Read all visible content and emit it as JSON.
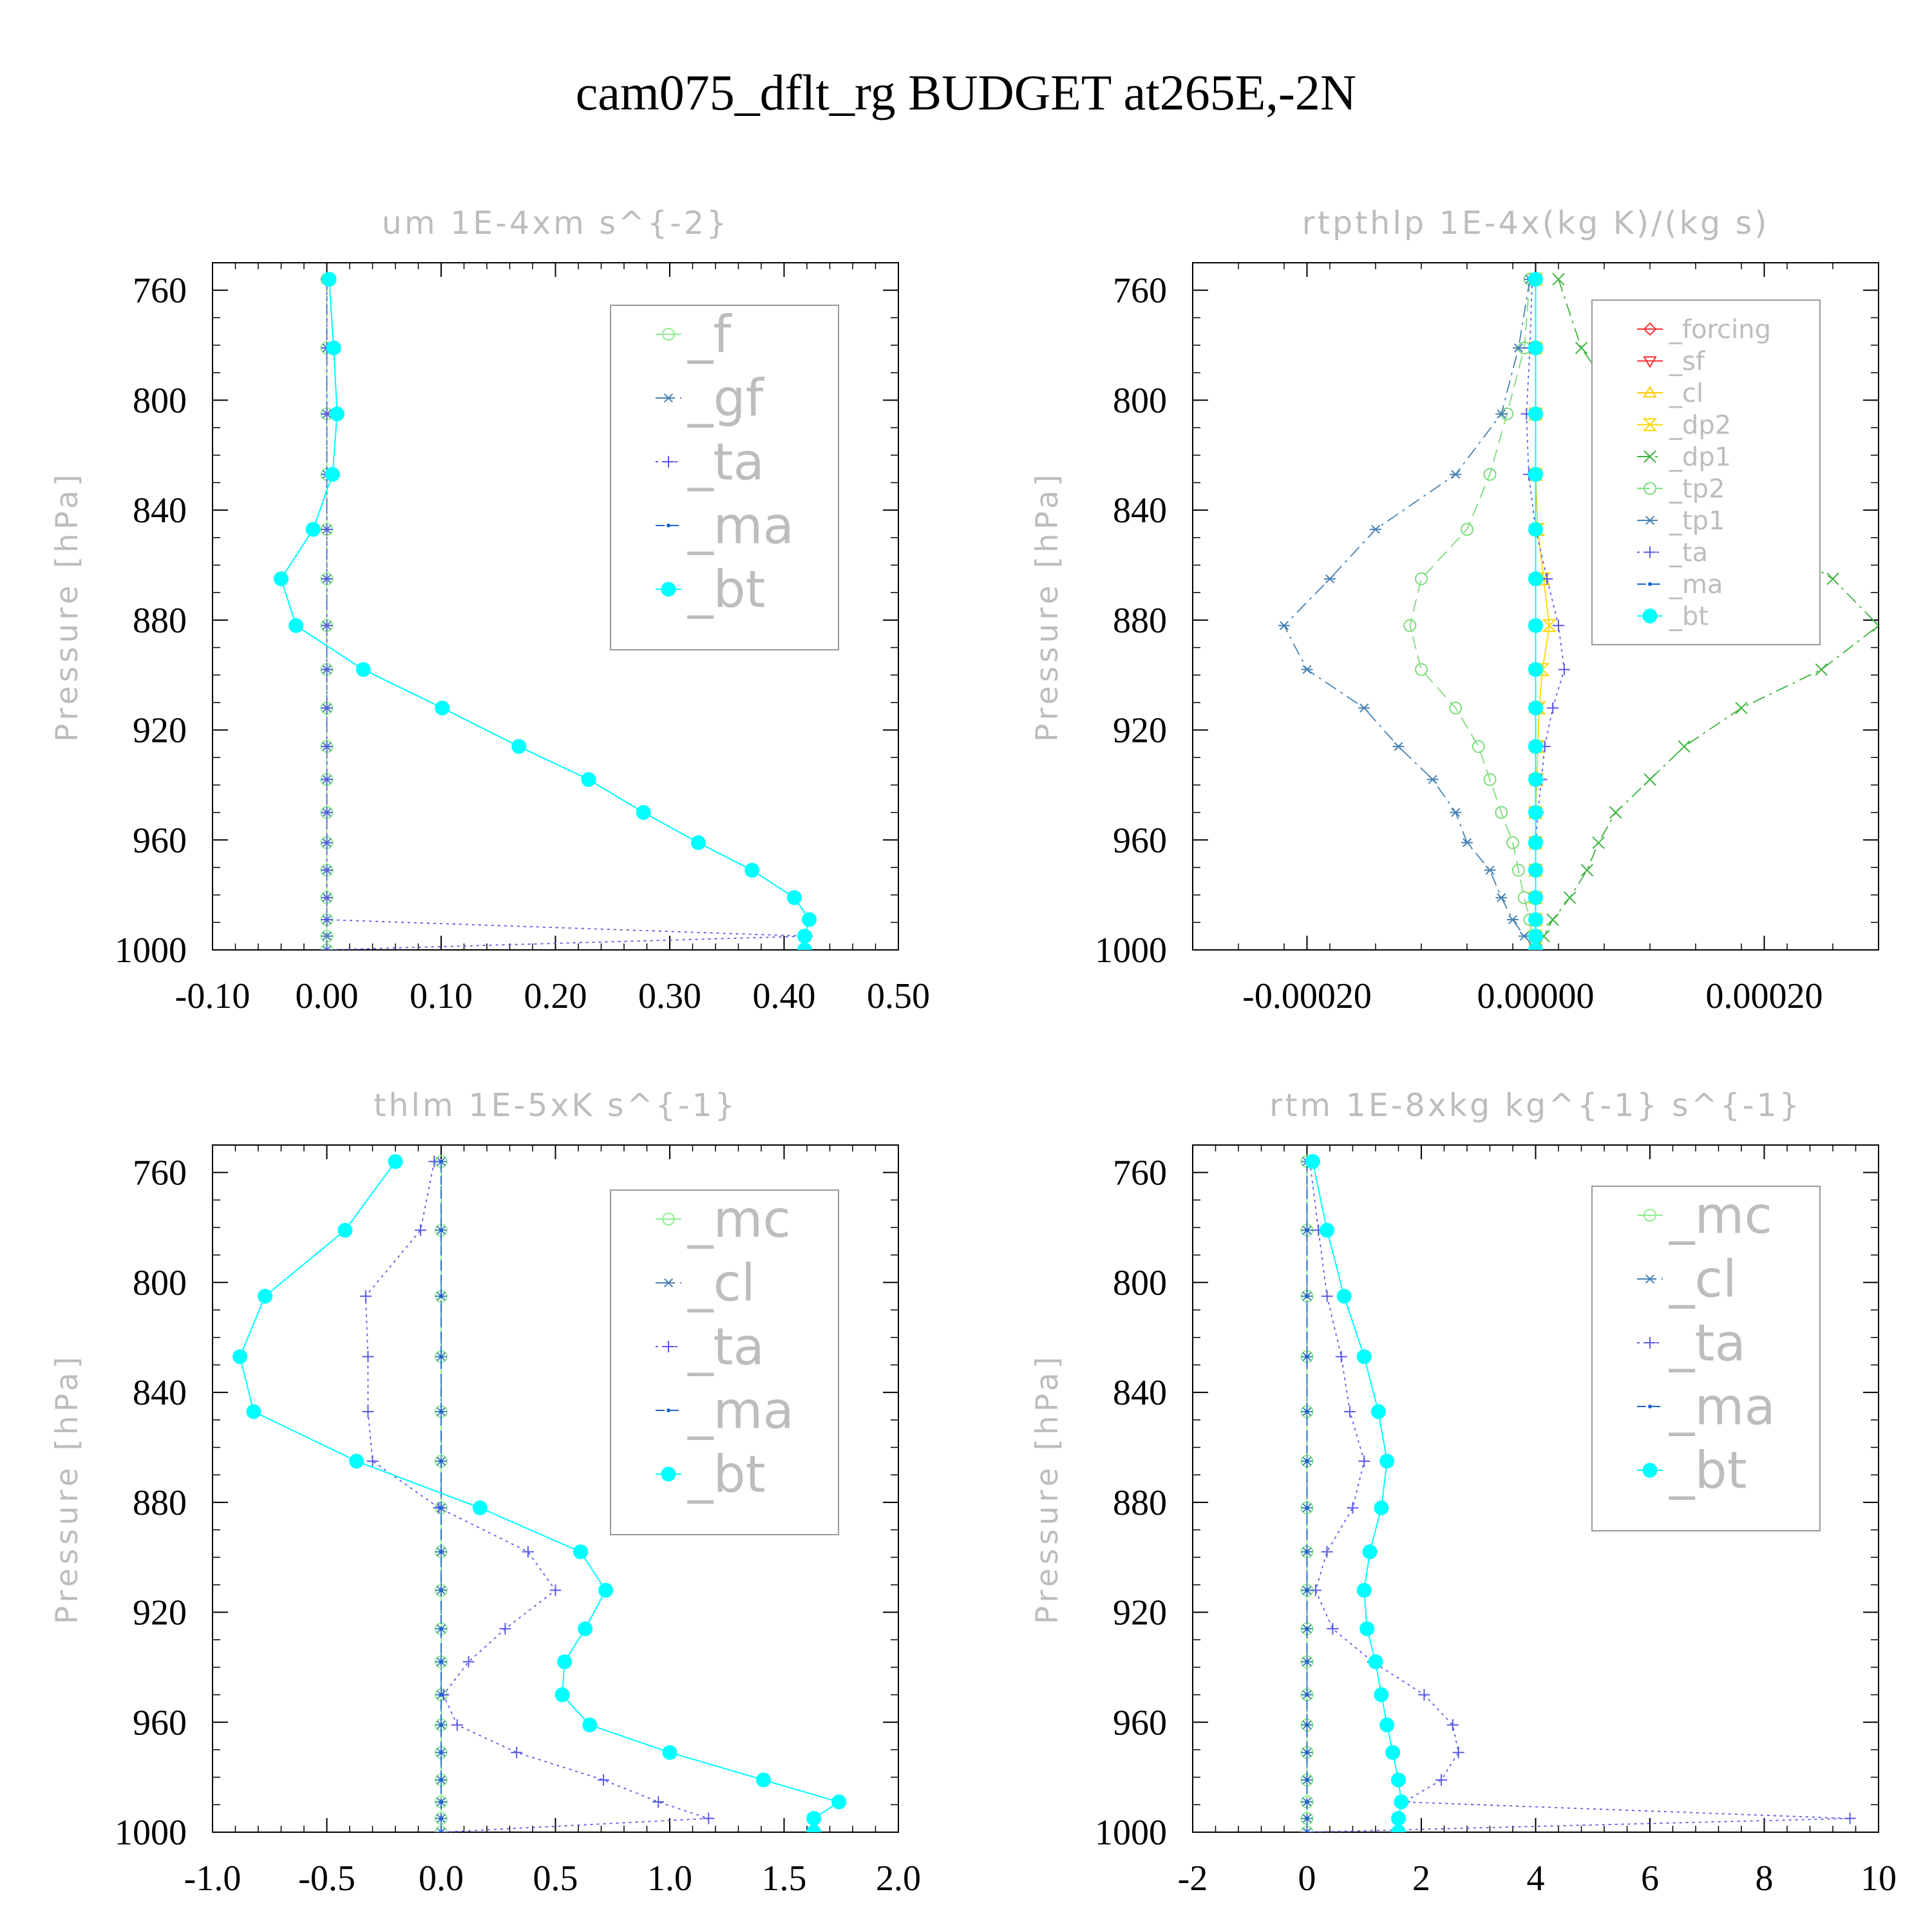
{
  "figure_title": "cam075_dflt_rg  BUDGET at265E,-2N",
  "chart_data": [
    {
      "type": "line",
      "title": "um  1E-4xm s^{-2}",
      "ylabel": "Pressure [hPa]",
      "xlim": [
        -0.1,
        0.5
      ],
      "ylim": [
        1000,
        750
      ],
      "x_ticks": [
        -0.1,
        0.0,
        0.1,
        0.2,
        0.3,
        0.4,
        0.5
      ],
      "x_tick_labels": [
        "-0.10",
        "0.00",
        "0.10",
        "0.20",
        "0.30",
        "0.40",
        "0.50"
      ],
      "y_ticks": [
        760,
        800,
        840,
        880,
        920,
        960,
        1000
      ],
      "y_tick_labels": [
        "760",
        "800",
        "840",
        "880",
        "920",
        "960",
        "1000"
      ],
      "legend_font": 79,
      "pressure": [
        756,
        781,
        805,
        827,
        847,
        865,
        882,
        898,
        912,
        926,
        938,
        950,
        961,
        971,
        981,
        989,
        995,
        1000
      ],
      "series": [
        {
          "name": "_f",
          "color": "#90ee90",
          "dash": "",
          "marker": "circle",
          "values": [
            0,
            0,
            0,
            0,
            0,
            0,
            0,
            0,
            0,
            0,
            0,
            0,
            0,
            0,
            0,
            0,
            0,
            0
          ]
        },
        {
          "name": "_gf",
          "color": "#4682b4",
          "dash": "18,8,4,8",
          "marker": "asterisk",
          "values": [
            0,
            0,
            0,
            0,
            0,
            0,
            0,
            0,
            0,
            0,
            0,
            0,
            0,
            0,
            0,
            0,
            0,
            0
          ]
        },
        {
          "name": "_ta",
          "color": "#5a5ae6",
          "dash": "4,6",
          "marker": "plus",
          "values": [
            0,
            0,
            0,
            0,
            0,
            0,
            0,
            0,
            0,
            0,
            0,
            0,
            0,
            0,
            0,
            0,
            0.42,
            0
          ]
        },
        {
          "name": "_ma",
          "color": "#1e64c8",
          "dash": "14,8",
          "marker": "dot",
          "values": [
            0.002,
            0.006,
            0.009,
            0.005,
            -0.012,
            -0.04,
            -0.027,
            0.032,
            0.101,
            0.168,
            0.229,
            0.277,
            0.325,
            0.372,
            0.409,
            0.422,
            0.418,
            0.418
          ]
        },
        {
          "name": "_bt",
          "color": "#00ffff",
          "dash": "",
          "marker": "filled",
          "values": [
            0.002,
            0.006,
            0.009,
            0.005,
            -0.012,
            -0.04,
            -0.027,
            0.032,
            0.101,
            0.168,
            0.229,
            0.277,
            0.325,
            0.372,
            0.409,
            0.422,
            0.418,
            0.418
          ]
        }
      ]
    },
    {
      "type": "line",
      "title": "rtpthlp  1E-4x(kg K)/(kg s)",
      "ylabel": "Pressure [hPa]",
      "xlim": [
        -0.0003,
        0.0003
      ],
      "ylim": [
        1000,
        750
      ],
      "x_ticks": [
        -0.0002,
        0.0,
        0.0002
      ],
      "x_tick_labels": [
        "-0.00020",
        "0.00000",
        "0.00020"
      ],
      "y_ticks": [
        760,
        800,
        840,
        880,
        920,
        960,
        1000
      ],
      "y_tick_labels": [
        "760",
        "800",
        "840",
        "880",
        "920",
        "960",
        "1000"
      ],
      "legend_font": 40,
      "pressure": [
        756,
        781,
        805,
        827,
        847,
        865,
        882,
        898,
        912,
        926,
        938,
        950,
        961,
        971,
        981,
        989,
        995,
        1000
      ],
      "series": [
        {
          "name": "_forcing",
          "color": "#ff3030",
          "dash": "",
          "marker": "diamond",
          "values": [
            0,
            0,
            0,
            0,
            0,
            0,
            0,
            0,
            0,
            0,
            0,
            0,
            0,
            0,
            0,
            0,
            0,
            0
          ]
        },
        {
          "name": "_sf",
          "color": "#ff3030",
          "dash": "",
          "marker": "tri-down",
          "values": [
            0,
            0,
            0,
            0,
            0,
            0,
            0,
            0,
            0,
            0,
            0,
            0,
            0,
            0,
            0,
            0,
            0,
            0
          ]
        },
        {
          "name": "_cl",
          "color": "#ffc800",
          "dash": "",
          "marker": "tri-up",
          "values": [
            0,
            0,
            0,
            0,
            0,
            0,
            0,
            0,
            0,
            0,
            0,
            0,
            0,
            0,
            0,
            0,
            0,
            0
          ]
        },
        {
          "name": "_dp2",
          "color": "#ffd700",
          "dash": "",
          "marker": "hourglass",
          "values": [
            0,
            0,
            0,
            0,
            2e-06,
            7e-06,
            1.2e-05,
            6e-06,
            3e-06,
            2e-06,
            1e-06,
            0,
            0,
            0,
            0,
            0,
            0,
            0
          ]
        },
        {
          "name": "_dp1",
          "color": "#3cb43c",
          "dash": "20,8,4,8",
          "marker": "x",
          "values": [
            2e-05,
            4e-05,
            8e-05,
            0.00013,
            0.00019,
            0.00026,
            0.0003,
            0.00025,
            0.00018,
            0.00013,
            0.0001,
            7e-05,
            5.5e-05,
            4.5e-05,
            3e-05,
            1.5e-05,
            7e-06,
            0
          ]
        },
        {
          "name": "_tp2",
          "color": "#7cdc7c",
          "dash": "20,10",
          "marker": "circle",
          "values": [
            -5e-06,
            -1e-05,
            -2.5e-05,
            -4e-05,
            -6e-05,
            -0.0001,
            -0.00011,
            -0.0001,
            -7e-05,
            -5e-05,
            -4e-05,
            -3e-05,
            -2e-05,
            -1.5e-05,
            -1e-05,
            -5e-06,
            -3e-06,
            0
          ]
        },
        {
          "name": "_tp1",
          "color": "#4682b4",
          "dash": "20,8,4,8",
          "marker": "asterisk",
          "values": [
            -5e-06,
            -1.5e-05,
            -3e-05,
            -7e-05,
            -0.00014,
            -0.00018,
            -0.00022,
            -0.0002,
            -0.00015,
            -0.00012,
            -9e-05,
            -7e-05,
            -6e-05,
            -4e-05,
            -3e-05,
            -2e-05,
            -1e-05,
            0
          ]
        },
        {
          "name": "_ta",
          "color": "#5a5ae6",
          "dash": "4,6",
          "marker": "plus",
          "values": [
            -3e-06,
            -5e-06,
            -8e-06,
            -6e-06,
            0,
            1e-05,
            2e-05,
            2.5e-05,
            1.5e-05,
            8e-06,
            5e-06,
            2e-06,
            0,
            0,
            0,
            0,
            0,
            0
          ]
        },
        {
          "name": "_ma",
          "color": "#1e64c8",
          "dash": "14,8",
          "marker": "dot",
          "values": [
            0,
            0,
            0,
            0,
            0,
            0,
            0,
            0,
            0,
            0,
            0,
            0,
            0,
            0,
            0,
            0,
            0,
            0
          ]
        },
        {
          "name": "_bt",
          "color": "#00ffff",
          "dash": "",
          "marker": "filled",
          "values": [
            0,
            0,
            0,
            0,
            0,
            0,
            0,
            0,
            0,
            0,
            0,
            0,
            0,
            0,
            0,
            0,
            0,
            0
          ]
        }
      ]
    },
    {
      "type": "line",
      "title": "thlm  1E-5xK s^{-1}",
      "ylabel": "Pressure [hPa]",
      "xlim": [
        -1.0,
        2.0
      ],
      "ylim": [
        1000,
        750
      ],
      "x_ticks": [
        -1.0,
        -0.5,
        0.0,
        0.5,
        1.0,
        1.5,
        2.0
      ],
      "x_tick_labels": [
        "-1.0",
        "-0.5",
        "0.0",
        "0.5",
        "1.0",
        "1.5",
        "2.0"
      ],
      "y_ticks": [
        760,
        800,
        840,
        880,
        920,
        960,
        1000
      ],
      "y_tick_labels": [
        "760",
        "800",
        "840",
        "880",
        "920",
        "960",
        "1000"
      ],
      "legend_font": 79,
      "pressure": [
        756,
        781,
        805,
        827,
        847,
        865,
        882,
        898,
        912,
        926,
        938,
        950,
        961,
        971,
        981,
        989,
        995,
        1000
      ],
      "series": [
        {
          "name": "_mc",
          "color": "#90ee90",
          "dash": "",
          "marker": "circle",
          "values": [
            0,
            0,
            0,
            0,
            0,
            0,
            0,
            0,
            0,
            0,
            0,
            0,
            0,
            0,
            0,
            0,
            0,
            0
          ]
        },
        {
          "name": "_cl",
          "color": "#4682b4",
          "dash": "18,8,4,8",
          "marker": "asterisk",
          "values": [
            0,
            0,
            0,
            0,
            0,
            0,
            0,
            0,
            0,
            0,
            0,
            0,
            0,
            0,
            0,
            0,
            0,
            0
          ]
        },
        {
          "name": "_ta",
          "color": "#5a5ae6",
          "dash": "4,6",
          "marker": "plus",
          "values": [
            -0.03,
            -0.09,
            -0.33,
            -0.32,
            -0.32,
            -0.3,
            -0.01,
            0.38,
            0.5,
            0.28,
            0.12,
            0.01,
            0.07,
            0.33,
            0.71,
            0.95,
            1.17,
            0
          ]
        },
        {
          "name": "_ma",
          "color": "#1e64c8",
          "dash": "14,8",
          "marker": "dot",
          "values": [
            0,
            0,
            0,
            0,
            0,
            0,
            0,
            0,
            0,
            0,
            0,
            0,
            0,
            0,
            0,
            0,
            0,
            0
          ]
        },
        {
          "name": "_bt",
          "color": "#00ffff",
          "dash": "",
          "marker": "filled",
          "values": [
            -0.2,
            -0.42,
            -0.77,
            -0.88,
            -0.82,
            -0.37,
            0.17,
            0.61,
            0.72,
            0.63,
            0.54,
            0.53,
            0.65,
            1.0,
            1.41,
            1.74,
            1.63,
            1.63
          ]
        }
      ]
    },
    {
      "type": "line",
      "title": "rtm  1E-8xkg kg^{-1} s^{-1}",
      "ylabel": "Pressure [hPa]",
      "xlim": [
        -2,
        10
      ],
      "ylim": [
        1000,
        750
      ],
      "x_ticks": [
        -2,
        0,
        2,
        4,
        6,
        8,
        10
      ],
      "x_tick_labels": [
        "-2",
        "0",
        "2",
        "4",
        "6",
        "8",
        "10"
      ],
      "y_ticks": [
        760,
        800,
        840,
        880,
        920,
        960,
        1000
      ],
      "y_tick_labels": [
        "760",
        "800",
        "840",
        "880",
        "920",
        "960",
        "1000"
      ],
      "legend_font": 79,
      "pressure": [
        756,
        781,
        805,
        827,
        847,
        865,
        882,
        898,
        912,
        926,
        938,
        950,
        961,
        971,
        981,
        989,
        995,
        1000
      ],
      "series": [
        {
          "name": "_mc",
          "color": "#90ee90",
          "dash": "",
          "marker": "circle",
          "values": [
            0,
            0,
            0,
            0,
            0,
            0,
            0,
            0,
            0,
            0,
            0,
            0,
            0,
            0,
            0,
            0,
            0,
            0
          ]
        },
        {
          "name": "_cl",
          "color": "#4682b4",
          "dash": "18,8,4,8",
          "marker": "asterisk",
          "values": [
            0,
            0,
            0,
            0,
            0,
            0,
            0,
            0,
            0,
            0,
            0,
            0,
            0,
            0,
            0,
            0,
            0,
            0
          ]
        },
        {
          "name": "_ta",
          "color": "#5a5ae6",
          "dash": "4,6",
          "marker": "plus",
          "values": [
            0.05,
            0.2,
            0.35,
            0.6,
            0.75,
            1.0,
            0.8,
            0.35,
            0.15,
            0.45,
            1.15,
            2.05,
            2.55,
            2.65,
            2.35,
            1.7,
            9.5,
            0
          ]
        },
        {
          "name": "_ma",
          "color": "#1e64c8",
          "dash": "14,8",
          "marker": "dot",
          "values": [
            0,
            0,
            0,
            0,
            0,
            0,
            0,
            0,
            0,
            0,
            0,
            0,
            0,
            0,
            0,
            0,
            0,
            0
          ]
        },
        {
          "name": "_bt",
          "color": "#00ffff",
          "dash": "",
          "marker": "filled",
          "values": [
            0.1,
            0.35,
            0.65,
            1.0,
            1.25,
            1.4,
            1.3,
            1.1,
            1.0,
            1.05,
            1.2,
            1.3,
            1.4,
            1.5,
            1.6,
            1.65,
            1.6,
            1.6
          ]
        }
      ]
    }
  ]
}
